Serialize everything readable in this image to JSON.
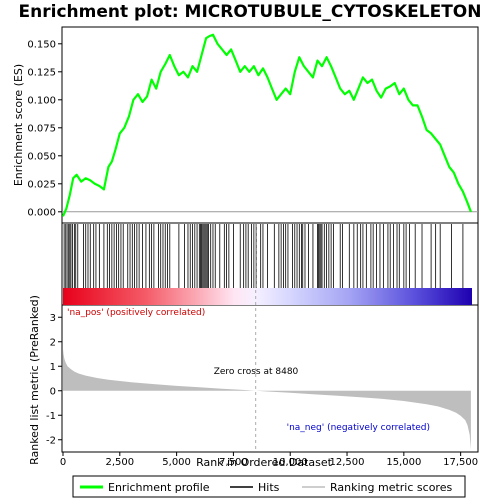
{
  "chart_data": {
    "type": "line",
    "title": "Enrichment plot: MICROTUBULE_CYTOSKELETON",
    "panels": {
      "enrichment": {
        "ylabel": "Enrichment score (ES)",
        "ylim": [
          -0.01,
          0.165
        ],
        "yticks": [
          "0.000",
          "0.025",
          "0.050",
          "0.075",
          "0.100",
          "0.125",
          "0.150"
        ],
        "ytick_values": [
          0,
          0.025,
          0.05,
          0.075,
          0.1,
          0.125,
          0.15
        ],
        "series": [
          {
            "name": "Enrichment profile",
            "color": "#00ff00",
            "x": [
              0,
              150,
              300,
              450,
              600,
              800,
              1000,
              1200,
              1400,
              1600,
              1800,
              2000,
              2150,
              2300,
              2500,
              2700,
              2900,
              3100,
              3300,
              3500,
              3700,
              3900,
              4100,
              4300,
              4500,
              4700,
              4900,
              5100,
              5300,
              5500,
              5700,
              5900,
              6100,
              6300,
              6450,
              6600,
              6800,
              7000,
              7200,
              7400,
              7600,
              7800,
              8000,
              8200,
              8400,
              8600,
              8800,
              9000,
              9200,
              9400,
              9600,
              9800,
              10000,
              10200,
              10400,
              10600,
              10800,
              11000,
              11200,
              11400,
              11600,
              11800,
              12000,
              12200,
              12400,
              12600,
              12800,
              13000,
              13200,
              13400,
              13600,
              13800,
              14000,
              14200,
              14400,
              14600,
              14800,
              15000,
              15200,
              15400,
              15600,
              15800,
              16000,
              16200,
              16400,
              16600,
              16800,
              17000,
              17200,
              17400,
              17600,
              17800,
              17950
            ],
            "y": [
              -0.004,
              0.003,
              0.015,
              0.03,
              0.033,
              0.027,
              0.03,
              0.028,
              0.025,
              0.023,
              0.02,
              0.04,
              0.045,
              0.055,
              0.07,
              0.075,
              0.085,
              0.1,
              0.105,
              0.098,
              0.103,
              0.118,
              0.11,
              0.125,
              0.132,
              0.14,
              0.13,
              0.122,
              0.125,
              0.12,
              0.13,
              0.125,
              0.14,
              0.155,
              0.157,
              0.158,
              0.15,
              0.145,
              0.14,
              0.145,
              0.135,
              0.125,
              0.13,
              0.125,
              0.13,
              0.122,
              0.128,
              0.12,
              0.11,
              0.1,
              0.105,
              0.11,
              0.105,
              0.125,
              0.138,
              0.13,
              0.125,
              0.12,
              0.135,
              0.13,
              0.138,
              0.13,
              0.12,
              0.11,
              0.105,
              0.108,
              0.1,
              0.11,
              0.12,
              0.115,
              0.118,
              0.108,
              0.102,
              0.11,
              0.112,
              0.115,
              0.105,
              0.11,
              0.1,
              0.095,
              0.095,
              0.085,
              0.073,
              0.07,
              0.065,
              0.06,
              0.05,
              0.04,
              0.035,
              0.025,
              0.018,
              0.008,
              0.0
            ]
          }
        ]
      },
      "hits": {
        "name": "Hits",
        "x": [
          50,
          120,
          180,
          250,
          300,
          350,
          420,
          500,
          560,
          650,
          900,
          1000,
          1100,
          1200,
          1350,
          1450,
          1600,
          1800,
          1950,
          2050,
          2150,
          2250,
          2350,
          2450,
          2550,
          2650,
          2850,
          2950,
          3050,
          3150,
          3250,
          3350,
          3500,
          3650,
          3800,
          3900,
          4000,
          4200,
          4300,
          4400,
          4500,
          4600,
          4700,
          5100,
          5350,
          5500,
          5600,
          5700,
          5800,
          5900,
          6000,
          6050,
          6100,
          6150,
          6200,
          6250,
          6300,
          6350,
          6400,
          6500,
          6600,
          6700,
          6900,
          7100,
          7200,
          7300,
          7500,
          7800,
          7950,
          8050,
          8150,
          8300,
          8400,
          8500,
          8700,
          8800,
          9000,
          9300,
          9500,
          9600,
          9700,
          9800,
          9900,
          10100,
          10200,
          10300,
          10400,
          10500,
          10550,
          10650,
          10800,
          11000,
          11200,
          11250,
          11300,
          11350,
          11400,
          11500,
          11600,
          11700,
          11800,
          11900,
          12200,
          12300,
          12600,
          12800,
          12950,
          13100,
          13200,
          13350,
          13550,
          13650,
          13800,
          13950,
          14100,
          14300,
          14400,
          14550,
          14700,
          14800,
          15000,
          15100,
          15250,
          15500,
          15800,
          16200,
          16400,
          16600,
          17100,
          17600
        ]
      },
      "ranked_metric": {
        "name": "Ranking metric scores",
        "ylabel": "Ranked list metric (PreRanked)",
        "xlabel": "Rank in Ordered Dataset",
        "ylim": [
          -2.5,
          3.5
        ],
        "yticks": [
          "-2",
          "-1",
          "0",
          "1",
          "2",
          "3"
        ],
        "ytick_values": [
          -2,
          -1,
          0,
          1,
          2,
          3
        ],
        "xlim": [
          0,
          18000
        ],
        "xticks": [
          "0",
          "2,500",
          "5,000",
          "7,500",
          "10,000",
          "12,500",
          "15,000",
          "17,500"
        ],
        "xtick_values": [
          0,
          2500,
          5000,
          7500,
          10000,
          12500,
          15000,
          17500
        ],
        "x": [
          0,
          20,
          60,
          120,
          200,
          350,
          500,
          700,
          1000,
          1500,
          2000,
          3000,
          4000,
          5000,
          6000,
          7000,
          8000,
          8480,
          9000,
          10000,
          11000,
          12000,
          13000,
          14000,
          15000,
          16000,
          16500,
          17000,
          17300,
          17500,
          17700,
          17800,
          17900,
          17950
        ],
        "y": [
          1.7,
          1.5,
          1.3,
          1.15,
          1.0,
          0.88,
          0.78,
          0.7,
          0.62,
          0.52,
          0.45,
          0.35,
          0.27,
          0.2,
          0.14,
          0.08,
          0.03,
          0.0,
          -0.03,
          -0.08,
          -0.14,
          -0.2,
          -0.26,
          -0.33,
          -0.42,
          -0.55,
          -0.64,
          -0.78,
          -0.9,
          -1.02,
          -1.2,
          -1.4,
          -1.8,
          -2.4
        ],
        "zero_cross_label": "Zero cross at 8480",
        "pos_label": "'na_pos' (positively correlated)",
        "neg_label": "'na_neg' (negatively correlated)"
      }
    },
    "legend": {
      "placement": "bottom",
      "items": [
        {
          "label": "Enrichment profile",
          "color": "#00ff00"
        },
        {
          "label": "Hits",
          "color": "#000000"
        },
        {
          "label": "Ranking metric scores",
          "color": "#bebebe"
        }
      ]
    },
    "colors": {
      "profile": "#00ff00",
      "hits": "#000000",
      "metric_fill": "#bebebe",
      "pos_text": "#cc0000",
      "neg_text": "#0000cc",
      "zero_line": "#aaaaaa"
    }
  }
}
